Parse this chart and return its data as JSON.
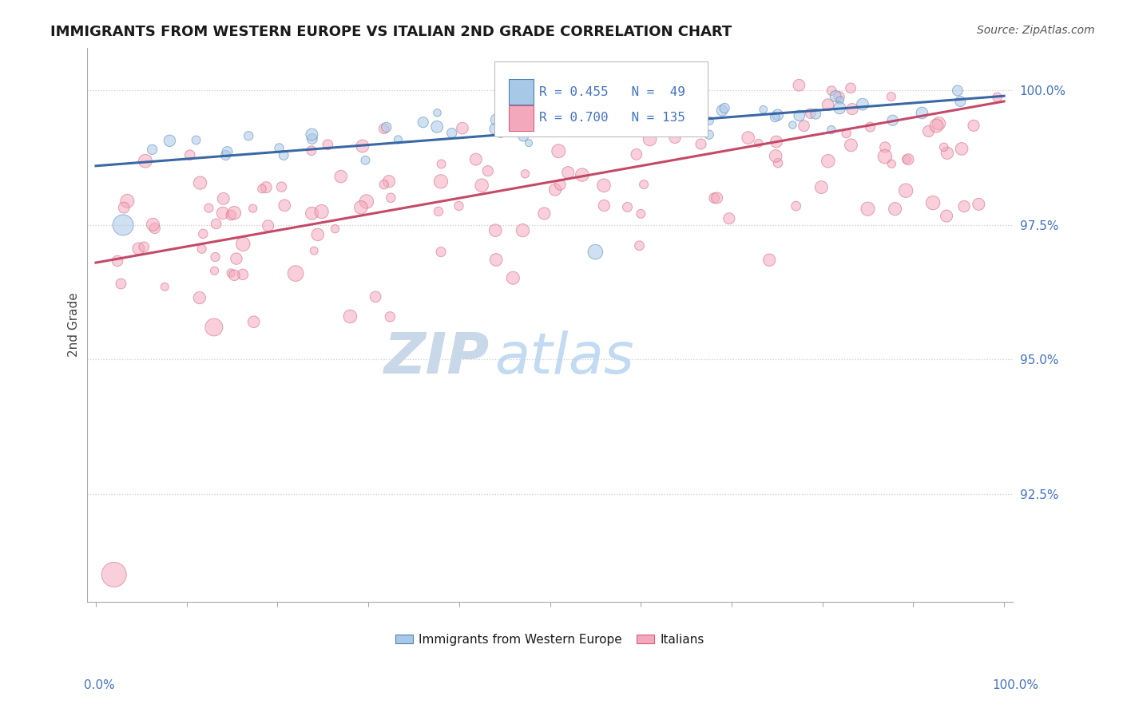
{
  "title": "IMMIGRANTS FROM WESTERN EUROPE VS ITALIAN 2ND GRADE CORRELATION CHART",
  "source": "Source: ZipAtlas.com",
  "blue_label": "Immigrants from Western Europe",
  "pink_label": "Italians",
  "blue_R": 0.455,
  "blue_N": 49,
  "pink_R": 0.7,
  "pink_N": 135,
  "blue_color": "#A8C8E8",
  "pink_color": "#F4A8BC",
  "blue_edge_color": "#5080B0",
  "pink_edge_color": "#D06080",
  "blue_line_color": "#3060A0",
  "pink_line_color": "#C04060",
  "title_color": "#1a1a1a",
  "axis_label_color": "#4472C4",
  "legend_text_color": "#4472C4",
  "source_color": "#555555",
  "ylabel_color": "#444444",
  "background_color": "#ffffff",
  "grid_color": "#cccccc",
  "ylim_min": 0.905,
  "ylim_max": 1.008,
  "xlim_min": -0.01,
  "xlim_max": 1.01,
  "ytick_vals": [
    1.0,
    0.975,
    0.95,
    0.925
  ],
  "ytick_labels": [
    "100.0%",
    "97.5%",
    "95.0%",
    "92.5%"
  ],
  "blue_trend_start": 0.986,
  "blue_trend_end": 0.999,
  "pink_trend_start": 0.968,
  "pink_trend_end": 0.998
}
